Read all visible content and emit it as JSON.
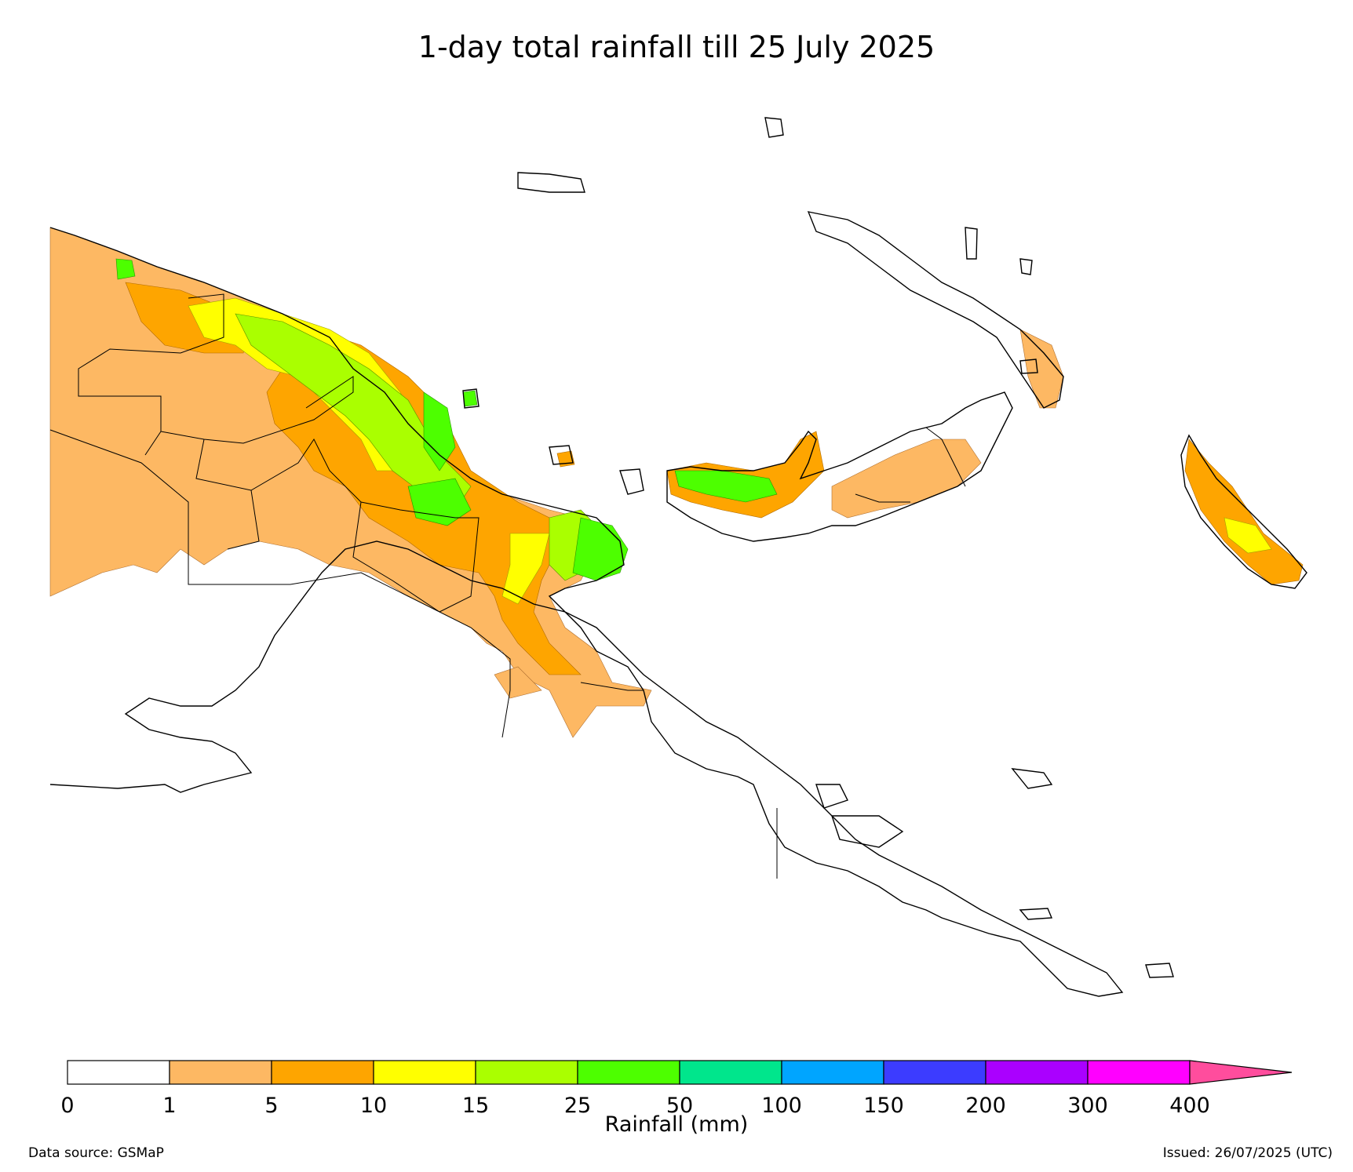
{
  "title": "1-day total rainfall till 25 July 2025",
  "colorbar": {
    "label": "Rainfall (mm)",
    "ticks": [
      "0",
      "1",
      "5",
      "10",
      "15",
      "25",
      "50",
      "100",
      "150",
      "200",
      "300",
      "400"
    ],
    "colors": [
      "#ffffff",
      "#fdb863",
      "#fea500",
      "#ffff00",
      "#aaff00",
      "#4dff00",
      "#00e68c",
      "#00a5ff",
      "#3c3cff",
      "#aa00ff",
      "#ff00ff"
    ],
    "extend_color": "#ff4d9d"
  },
  "footer": {
    "data_source": "Data source: GSMaP",
    "issued": "Issued: 26/07/2025 (UTC)"
  }
}
